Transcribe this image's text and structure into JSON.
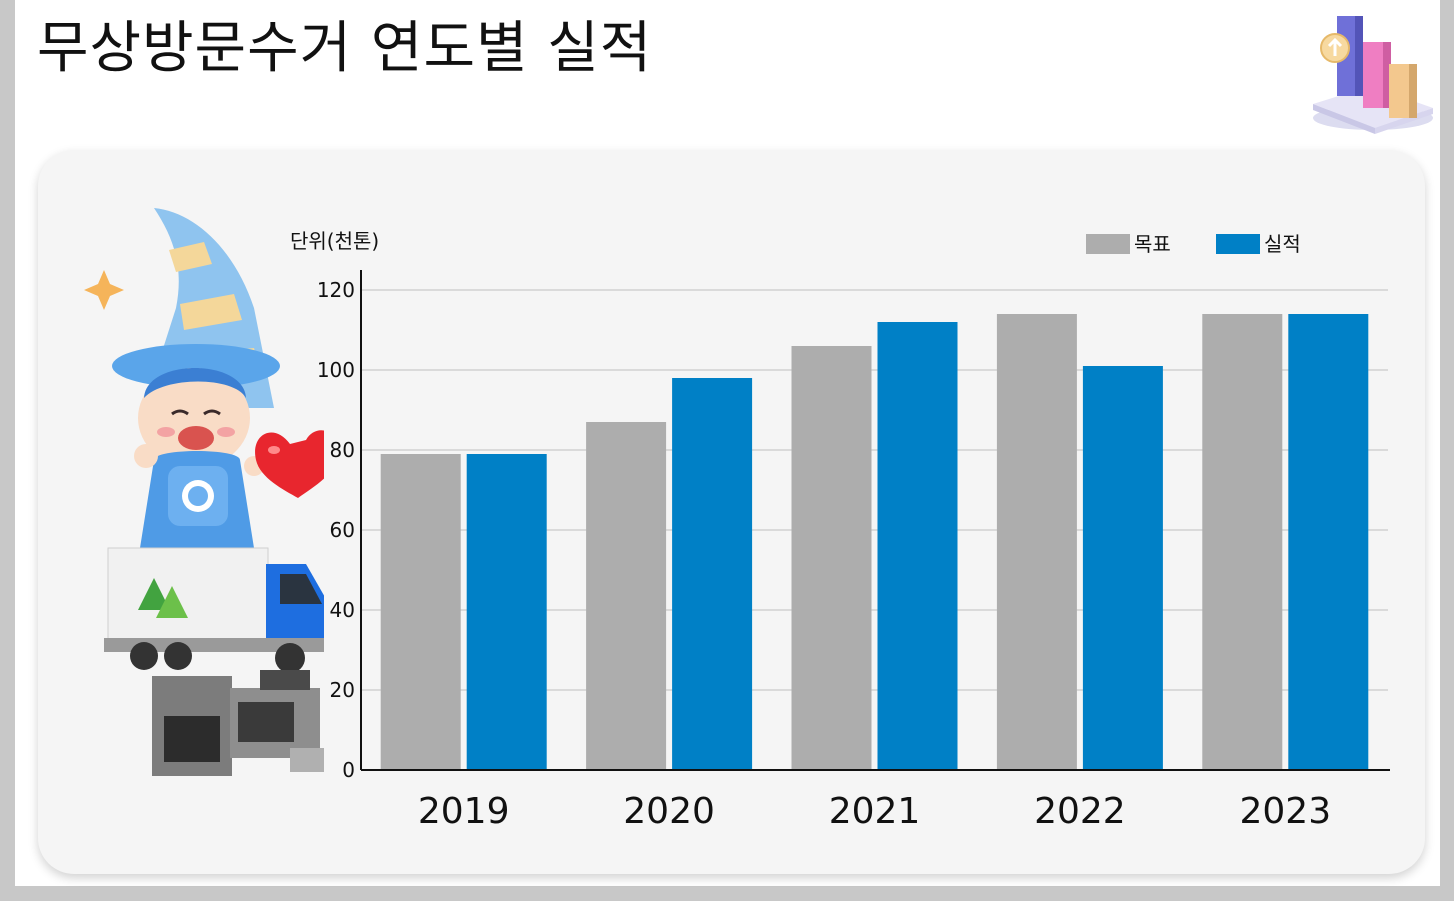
{
  "page": {
    "title": "무상방문수거 연도별 실적"
  },
  "icons": {
    "corner_decoration": "bar-chart-3d-icon",
    "illustration": "mascot-truck-appliances-illustration"
  },
  "chart_data": {
    "type": "bar",
    "title": "",
    "unit_label": "단위(천톤)",
    "xlabel": "",
    "ylabel": "",
    "categories": [
      "2019",
      "2020",
      "2021",
      "2022",
      "2023"
    ],
    "series": [
      {
        "name": "목표",
        "color": "#adadad",
        "values": [
          79,
          87,
          106,
          114,
          114
        ]
      },
      {
        "name": "실적",
        "color": "#0080c6",
        "values": [
          79,
          98,
          112,
          101,
          114
        ]
      }
    ],
    "ylim": [
      0,
      120
    ],
    "yticks": [
      0,
      20,
      40,
      60,
      80,
      100,
      120
    ],
    "grid": true,
    "legend_position": "top-right"
  }
}
